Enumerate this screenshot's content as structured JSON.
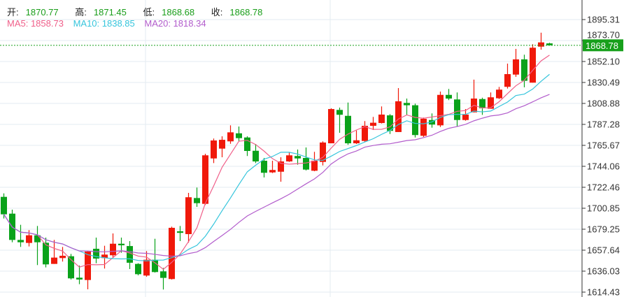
{
  "header": {
    "open_label": "开:",
    "open": "1870.77",
    "high_label": "高:",
    "high": "1871.45",
    "low_label": "低:",
    "low": "1868.68",
    "close_label": "收:",
    "close": "1868.78",
    "ma5": "MA5: 1858.73",
    "ma10": "MA10: 1838.85",
    "ma20": "MA20: 1818.34"
  },
  "colors": {
    "up": "#f0190a",
    "down": "#0aa21a",
    "ma5": "#f0608a",
    "ma10": "#36c5dc",
    "ma20": "#b25ccc",
    "grid": "#e3ebf1",
    "price_tag": "#17a01b"
  },
  "chart_data": {
    "type": "candlestick",
    "y_ticks": [
      "1895.31",
      "1873.70",
      "1852.10",
      "1830.49",
      "1808.88",
      "1787.28",
      "1765.67",
      "1744.06",
      "1722.46",
      "1700.85",
      "1679.25",
      "1657.64",
      "1636.03",
      "1614.43"
    ],
    "ylim": [
      1614.43,
      1895.31
    ],
    "last_price": "1868.78",
    "ma_periods": [
      5,
      10,
      20
    ],
    "ohlc": [
      [
        1712.6,
        1716.2,
        1690.3,
        1694.6
      ],
      [
        1695.3,
        1699.4,
        1665.8,
        1668.2
      ],
      [
        1668.2,
        1683.8,
        1661.0,
        1665.8
      ],
      [
        1665.1,
        1678.3,
        1661.5,
        1673.0
      ],
      [
        1673.0,
        1682.6,
        1642.3,
        1665.8
      ],
      [
        1665.3,
        1670.6,
        1639.9,
        1643.0
      ],
      [
        1643.5,
        1668.2,
        1643.5,
        1650.0
      ],
      [
        1649.5,
        1661.0,
        1645.9,
        1651.9
      ],
      [
        1651.4,
        1653.8,
        1627.4,
        1628.6
      ],
      [
        1629.3,
        1641.8,
        1622.6,
        1627.4
      ],
      [
        1626.9,
        1656.7,
        1617.3,
        1656.2
      ],
      [
        1659.1,
        1670.6,
        1644.2,
        1649.0
      ],
      [
        1649.5,
        1662.2,
        1638.7,
        1653.1
      ],
      [
        1652.4,
        1674.9,
        1650.2,
        1664.3
      ],
      [
        1664.3,
        1670.6,
        1655.0,
        1662.7
      ],
      [
        1661.9,
        1667.0,
        1638.2,
        1644.7
      ],
      [
        1643.5,
        1644.2,
        1631.7,
        1632.9
      ],
      [
        1631.5,
        1656.7,
        1630.3,
        1647.8
      ],
      [
        1647.8,
        1669.4,
        1634.6,
        1635.1
      ],
      [
        1635.8,
        1639.4,
        1617.1,
        1629.1
      ],
      [
        1627.9,
        1681.9,
        1627.4,
        1680.7
      ],
      [
        1677.1,
        1682.6,
        1667.0,
        1675.5
      ],
      [
        1674.2,
        1716.7,
        1665.4,
        1712.2
      ],
      [
        1711.4,
        1722.2,
        1702.3,
        1706.1
      ],
      [
        1705.4,
        1757.0,
        1704.2,
        1755.4
      ],
      [
        1752.2,
        1772.7,
        1747.4,
        1770.7
      ],
      [
        1762.3,
        1775.0,
        1753.4,
        1771.4
      ],
      [
        1769.8,
        1786.3,
        1767.3,
        1779.1
      ],
      [
        1778.1,
        1785.1,
        1770.2,
        1773.1
      ],
      [
        1773.8,
        1775.0,
        1754.7,
        1759.9
      ],
      [
        1760.1,
        1767.1,
        1747.4,
        1749.1
      ],
      [
        1749.8,
        1752.7,
        1732.6,
        1737.4
      ],
      [
        1737.8,
        1749.8,
        1737.1,
        1740.3
      ],
      [
        1738.5,
        1753.4,
        1728.2,
        1749.1
      ],
      [
        1749.1,
        1758.3,
        1748.6,
        1755.4
      ],
      [
        1754.7,
        1761.4,
        1745.7,
        1752.2
      ],
      [
        1752.7,
        1763.5,
        1739.8,
        1740.7
      ],
      [
        1739.5,
        1759.0,
        1739.0,
        1749.8
      ],
      [
        1748.6,
        1769.8,
        1745.0,
        1768.6
      ],
      [
        1767.8,
        1803.9,
        1767.8,
        1803.1
      ],
      [
        1802.2,
        1804.6,
        1778.6,
        1797.2
      ],
      [
        1796.1,
        1809.8,
        1766.2,
        1767.8
      ],
      [
        1767.8,
        1781.0,
        1767.1,
        1770.9
      ],
      [
        1770.2,
        1790.7,
        1769.1,
        1785.8
      ],
      [
        1785.8,
        1795.0,
        1781.5,
        1789.0
      ],
      [
        1788.7,
        1805.8,
        1788.2,
        1797.4
      ],
      [
        1796.6,
        1797.9,
        1777.4,
        1780.6
      ],
      [
        1779.4,
        1824.7,
        1779.4,
        1811.1
      ],
      [
        1809.4,
        1813.9,
        1796.6,
        1807.0
      ],
      [
        1807.0,
        1808.7,
        1773.8,
        1776.3
      ],
      [
        1775.5,
        1794.3,
        1774.3,
        1793.1
      ],
      [
        1791.8,
        1798.6,
        1783.9,
        1787.1
      ],
      [
        1786.3,
        1821.1,
        1784.6,
        1817.7
      ],
      [
        1817.7,
        1823.8,
        1812.3,
        1813.9
      ],
      [
        1813.0,
        1820.2,
        1785.3,
        1791.8
      ],
      [
        1791.8,
        1803.1,
        1791.1,
        1797.4
      ],
      [
        1799.7,
        1833.4,
        1799.7,
        1813.9
      ],
      [
        1813.4,
        1814.8,
        1797.1,
        1803.9
      ],
      [
        1803.4,
        1820.2,
        1803.4,
        1815.2
      ],
      [
        1814.2,
        1825.9,
        1813.4,
        1823.1
      ],
      [
        1826.0,
        1849.9,
        1824.2,
        1839.1
      ],
      [
        1838.6,
        1865.1,
        1836.3,
        1854.3
      ],
      [
        1854.3,
        1859.1,
        1825.5,
        1832.2
      ],
      [
        1830.3,
        1869.9,
        1830.3,
        1866.3
      ],
      [
        1867.4,
        1881.8,
        1864.3,
        1871.8
      ],
      [
        1870.77,
        1871.45,
        1868.68,
        1868.78
      ]
    ]
  }
}
